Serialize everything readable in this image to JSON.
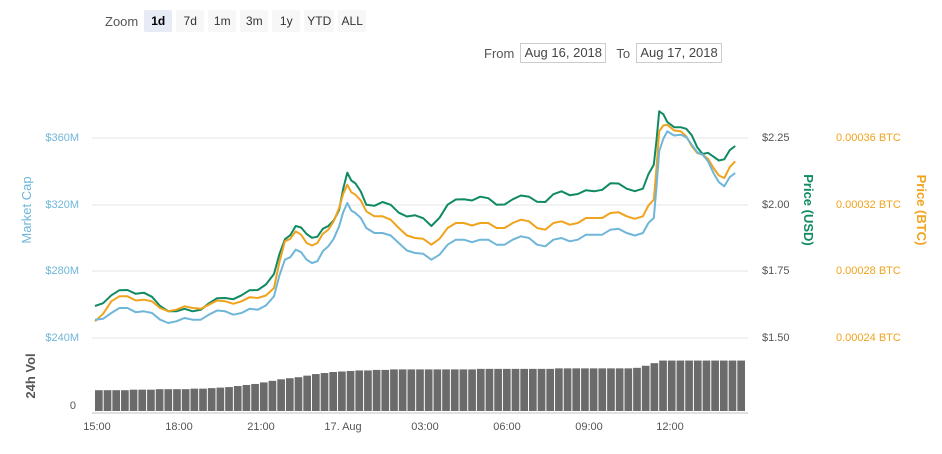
{
  "zoom": {
    "label": "Zoom",
    "buttons": [
      "1d",
      "7d",
      "1m",
      "3m",
      "1y",
      "YTD",
      "ALL"
    ],
    "active": "1d"
  },
  "range": {
    "from_label": "From",
    "from_value": "Aug 16, 2018",
    "to_label": "To",
    "to_value": "Aug 17, 2018"
  },
  "colors": {
    "market_cap": "#6fb6d9",
    "price_usd": "#0f8a63",
    "price_btc": "#f0a31d",
    "volume": "#6b6b6b",
    "grid": "#e6e6e6"
  },
  "chart_data": {
    "type": "line",
    "x_ticks": [
      "15:00",
      "18:00",
      "21:00",
      "17. Aug",
      "03:00",
      "06:00",
      "09:00",
      "12:00"
    ],
    "x_range_hours": [
      0,
      24
    ],
    "axes": {
      "market_cap": {
        "label": "Market Cap",
        "ticks": [
          "$240M",
          "$280M",
          "$320M",
          "$360M"
        ],
        "range": [
          240,
          380
        ]
      },
      "price_usd": {
        "label": "Price (USD)",
        "ticks": [
          "$1.50",
          "$1.75",
          "$2.00",
          "$2.25"
        ],
        "range": [
          1.5,
          2.375
        ]
      },
      "price_btc": {
        "label": "Price (BTC)",
        "ticks": [
          "0.00024 BTC",
          "0.00028 BTC",
          "0.00032 BTC",
          "0.00036 BTC"
        ],
        "range": [
          0.00024,
          0.00038
        ]
      },
      "volume": {
        "label": "24h Vol",
        "ticks": [
          "0"
        ]
      }
    },
    "series": [
      {
        "name": "Price (USD)",
        "axis": "price_usd",
        "points": [
          [
            0,
            1.62
          ],
          [
            0.6,
            1.66
          ],
          [
            1.2,
            1.68
          ],
          [
            1.8,
            1.67
          ],
          [
            2.4,
            1.62
          ],
          [
            3,
            1.6
          ],
          [
            3.6,
            1.6
          ],
          [
            4.2,
            1.63
          ],
          [
            4.8,
            1.65
          ],
          [
            5.4,
            1.66
          ],
          [
            6,
            1.68
          ],
          [
            6.6,
            1.74
          ],
          [
            7,
            1.87
          ],
          [
            7.4,
            1.92
          ],
          [
            7.8,
            1.89
          ],
          [
            8.2,
            1.88
          ],
          [
            8.6,
            1.92
          ],
          [
            9,
            1.98
          ],
          [
            9.3,
            2.12
          ],
          [
            9.6,
            2.08
          ],
          [
            10,
            2.0
          ],
          [
            10.6,
            2.01
          ],
          [
            11.2,
            1.97
          ],
          [
            11.8,
            1.96
          ],
          [
            12.4,
            1.92
          ],
          [
            13,
            2.0
          ],
          [
            13.6,
            2.02
          ],
          [
            14.2,
            2.03
          ],
          [
            14.8,
            2.0
          ],
          [
            15.4,
            2.02
          ],
          [
            16,
            2.03
          ],
          [
            16.6,
            2.01
          ],
          [
            17.2,
            2.05
          ],
          [
            17.8,
            2.04
          ],
          [
            18.4,
            2.05
          ],
          [
            19,
            2.08
          ],
          [
            19.6,
            2.06
          ],
          [
            20.2,
            2.06
          ],
          [
            20.6,
            2.15
          ],
          [
            20.8,
            2.35
          ],
          [
            21.1,
            2.31
          ],
          [
            21.6,
            2.29
          ],
          [
            22,
            2.26
          ],
          [
            22.4,
            2.19
          ],
          [
            22.8,
            2.18
          ],
          [
            23.2,
            2.17
          ],
          [
            23.6,
            2.22
          ]
        ]
      },
      {
        "name": "Price (BTC)",
        "axis": "price_btc",
        "points": [
          [
            0,
            0.00025
          ],
          [
            0.6,
            0.000262
          ],
          [
            1.2,
            0.000265
          ],
          [
            1.8,
            0.000263
          ],
          [
            2.4,
            0.000258
          ],
          [
            3,
            0.000257
          ],
          [
            3.6,
            0.000258
          ],
          [
            4.2,
            0.00026
          ],
          [
            4.8,
            0.000262
          ],
          [
            5.4,
            0.000262
          ],
          [
            6,
            0.000264
          ],
          [
            6.6,
            0.00027
          ],
          [
            7,
            0.000298
          ],
          [
            7.4,
            0.000304
          ],
          [
            7.8,
            0.000297
          ],
          [
            8.2,
            0.000297
          ],
          [
            8.6,
            0.000305
          ],
          [
            9,
            0.000318
          ],
          [
            9.3,
            0.000332
          ],
          [
            9.6,
            0.000326
          ],
          [
            10,
            0.000316
          ],
          [
            10.6,
            0.000313
          ],
          [
            11.2,
            0.000306
          ],
          [
            11.8,
            0.0003
          ],
          [
            12.4,
            0.000296
          ],
          [
            13,
            0.000306
          ],
          [
            13.6,
            0.000309
          ],
          [
            14.2,
            0.000309
          ],
          [
            14.8,
            0.000306
          ],
          [
            15.4,
            0.000309
          ],
          [
            16,
            0.00031
          ],
          [
            16.6,
            0.000305
          ],
          [
            17.2,
            0.00031
          ],
          [
            17.8,
            0.000309
          ],
          [
            18.4,
            0.000312
          ],
          [
            19,
            0.000315
          ],
          [
            19.6,
            0.000313
          ],
          [
            20.2,
            0.000313
          ],
          [
            20.6,
            0.000323
          ],
          [
            20.8,
            0.000364
          ],
          [
            21.1,
            0.000368
          ],
          [
            21.6,
            0.000364
          ],
          [
            22,
            0.000355
          ],
          [
            22.4,
            0.00035
          ],
          [
            22.8,
            0.000342
          ],
          [
            23.2,
            0.000336
          ],
          [
            23.6,
            0.000346
          ]
        ]
      },
      {
        "name": "Market Cap",
        "axis": "market_cap",
        "points": [
          [
            0,
            251
          ],
          [
            0.6,
            255
          ],
          [
            1.2,
            258
          ],
          [
            1.8,
            256
          ],
          [
            2.4,
            251
          ],
          [
            3,
            250
          ],
          [
            3.6,
            251
          ],
          [
            4.2,
            254
          ],
          [
            4.8,
            256
          ],
          [
            5.4,
            255
          ],
          [
            6,
            257
          ],
          [
            6.6,
            265
          ],
          [
            7,
            287
          ],
          [
            7.4,
            293
          ],
          [
            7.8,
            287
          ],
          [
            8.2,
            286
          ],
          [
            8.6,
            295
          ],
          [
            9,
            307
          ],
          [
            9.3,
            321
          ],
          [
            9.6,
            315
          ],
          [
            10,
            306
          ],
          [
            10.6,
            303
          ],
          [
            11.2,
            297
          ],
          [
            11.8,
            291
          ],
          [
            12.4,
            287
          ],
          [
            13,
            296
          ],
          [
            13.6,
            299
          ],
          [
            14.2,
            299
          ],
          [
            14.8,
            296
          ],
          [
            15.4,
            299
          ],
          [
            16,
            300
          ],
          [
            16.6,
            295
          ],
          [
            17.2,
            300
          ],
          [
            17.8,
            299
          ],
          [
            18.4,
            302
          ],
          [
            19,
            305
          ],
          [
            19.6,
            303
          ],
          [
            20.2,
            303
          ],
          [
            20.6,
            312
          ],
          [
            20.8,
            352
          ],
          [
            21.1,
            364
          ],
          [
            21.6,
            362
          ],
          [
            22,
            356
          ],
          [
            22.4,
            350
          ],
          [
            22.8,
            339
          ],
          [
            23.2,
            331
          ],
          [
            23.6,
            339
          ]
        ]
      }
    ],
    "volume_profile": [
      0.4,
      0.4,
      0.4,
      0.4,
      0.41,
      0.41,
      0.41,
      0.42,
      0.42,
      0.42,
      0.42,
      0.43,
      0.43,
      0.44,
      0.45,
      0.46,
      0.48,
      0.5,
      0.52,
      0.55,
      0.58,
      0.61,
      0.63,
      0.65,
      0.68,
      0.71,
      0.73,
      0.75,
      0.76,
      0.77,
      0.78,
      0.78,
      0.79,
      0.79,
      0.8,
      0.8,
      0.8,
      0.8,
      0.8,
      0.8,
      0.8,
      0.8,
      0.8,
      0.8,
      0.81,
      0.81,
      0.81,
      0.81,
      0.81,
      0.81,
      0.81,
      0.81,
      0.81,
      0.82,
      0.82,
      0.82,
      0.82,
      0.82,
      0.82,
      0.82,
      0.82,
      0.82,
      0.83,
      0.87,
      0.92,
      0.97,
      0.97,
      0.97,
      0.97,
      0.97,
      0.97,
      0.97,
      0.97,
      0.97,
      0.97
    ]
  }
}
